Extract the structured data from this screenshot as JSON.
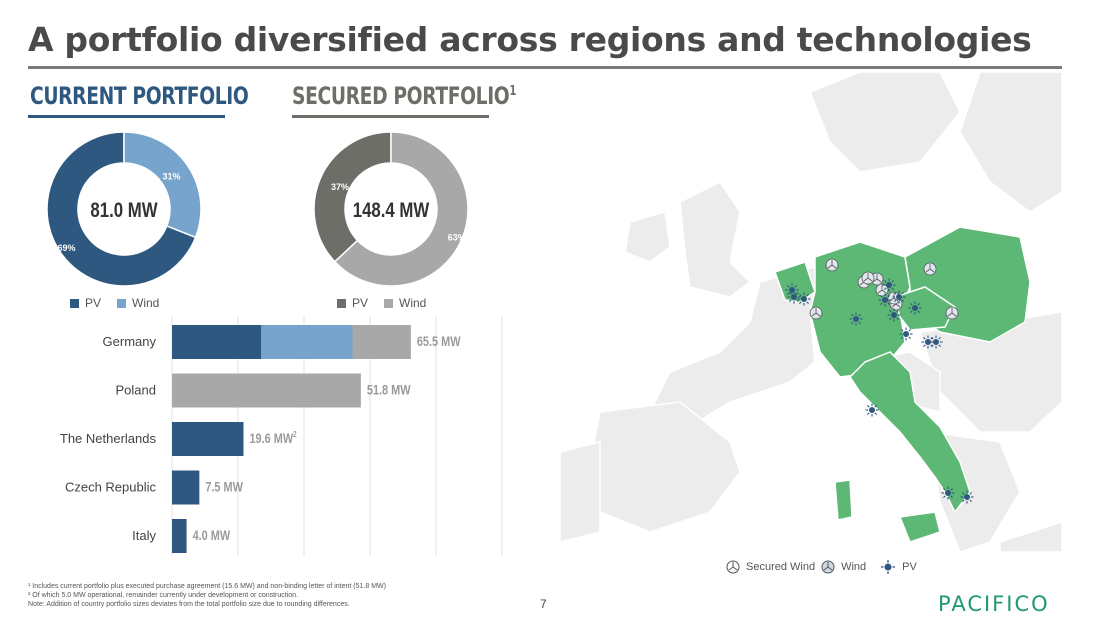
{
  "title": "A portfolio diversified across regions and technologies",
  "current_portfolio": {
    "heading": "CURRENT PORTFOLIO",
    "center_label": "81.0 MW",
    "legend": [
      "PV",
      "Wind"
    ]
  },
  "secured_portfolio": {
    "heading": "SECURED PORTFOLIO",
    "heading_sup": "1",
    "center_label": "148.4 MW",
    "legend": [
      "PV",
      "Wind"
    ]
  },
  "colors": {
    "pv": "#2f5880",
    "wind": "#76a4cc",
    "sec_pv": "#6e6e69",
    "sec_wind": "#a8a8a8",
    "map_green": "#5cb874",
    "map_grey": "#ececec",
    "accent_rule": "#2f5880"
  },
  "chart_data": [
    {
      "type": "pie",
      "id": "current",
      "labels": [
        "PV",
        "Wind"
      ],
      "values": [
        69,
        31
      ],
      "value_labels": [
        "69%",
        "31%"
      ],
      "center": "81.0 MW"
    },
    {
      "type": "pie",
      "id": "secured",
      "labels": [
        "PV",
        "Wind"
      ],
      "values": [
        37,
        63
      ],
      "value_labels": [
        "37%",
        "63%"
      ],
      "center": "148.4 MW"
    },
    {
      "type": "bar",
      "orientation": "horizontal",
      "stacked": true,
      "categories": [
        "Germany",
        "Poland",
        "The Netherlands",
        "Czech Republic",
        "Italy"
      ],
      "series": [
        {
          "values": [
            24.5,
            0,
            19.6,
            7.5,
            4.0
          ]
        },
        {
          "values": [
            25.0,
            0,
            0,
            0,
            0
          ]
        },
        {
          "values": [
            16.0,
            51.8,
            0,
            0,
            0
          ]
        }
      ],
      "total_labels": [
        "65.5 MW",
        "51.8 MW",
        "19.6 MW",
        "7.5 MW",
        "4.0 MW"
      ],
      "total_label_sup": [
        "",
        "",
        "2",
        "",
        ""
      ],
      "xlim": [
        0,
        110
      ],
      "grid": true
    }
  ],
  "map_legend": {
    "secured_wind": "Secured Wind",
    "wind": "Wind",
    "pv": "PV"
  },
  "footnotes": [
    "¹ Includes current portfolio plus executed purchase agreement (15.6 MW) and non-binding letter of intent (51.8 MW)",
    "² Of which 5.0 MW operational, remainder currently under development or construction.",
    "Note: Addition of country portfolio sizes deviates from the total portfolio size due to rounding differences."
  ],
  "page_number": "7",
  "logo": "PACIFICO"
}
